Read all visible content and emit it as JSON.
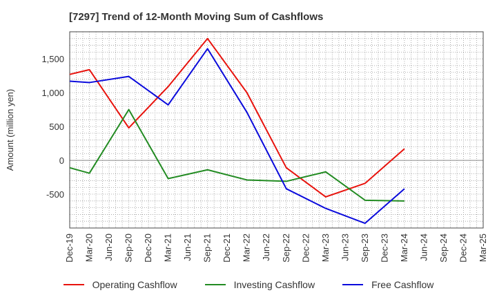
{
  "chart_data": {
    "type": "line",
    "title": "[7297]  Trend of 12-Month Moving Sum of Cashflows",
    "ylabel": "Amount (million yen)",
    "xlabel": "",
    "categories": [
      "Dec-19",
      "Mar-20",
      "Jun-20",
      "Sep-20",
      "Dec-20",
      "Mar-21",
      "Jun-21",
      "Sep-21",
      "Dec-21",
      "Mar-22",
      "Jun-22",
      "Sep-22",
      "Dec-22",
      "Mar-23",
      "Jun-23",
      "Sep-23",
      "Dec-23",
      "Mar-24",
      "Jun-24",
      "Sep-24",
      "Dec-24",
      "Mar-25"
    ],
    "ylim": [
      -1000,
      1900
    ],
    "yticks": [
      -500,
      0,
      500,
      1000,
      1500
    ],
    "ytick_labels": [
      "-500",
      "0",
      "500",
      "1,000",
      "1,500"
    ],
    "grid": true,
    "legend_position": "bottom",
    "series": [
      {
        "name": "Operating Cashflow",
        "color": "#e8120c",
        "points": [
          [
            "Dec-19",
            1270
          ],
          [
            "Mar-20",
            1340
          ],
          [
            "Sep-20",
            480
          ],
          [
            "Mar-21",
            1090
          ],
          [
            "Sep-21",
            1800
          ],
          [
            "Mar-22",
            1000
          ],
          [
            "Sep-22",
            -110
          ],
          [
            "Mar-23",
            -540
          ],
          [
            "Sep-23",
            -340
          ],
          [
            "Mar-24",
            170
          ]
        ]
      },
      {
        "name": "Investing Cashflow",
        "color": "#228b22",
        "points": [
          [
            "Dec-19",
            -110
          ],
          [
            "Mar-20",
            -190
          ],
          [
            "Sep-20",
            750
          ],
          [
            "Mar-21",
            -270
          ],
          [
            "Sep-21",
            -140
          ],
          [
            "Mar-22",
            -290
          ],
          [
            "Sep-22",
            -310
          ],
          [
            "Mar-23",
            -170
          ],
          [
            "Sep-23",
            -590
          ],
          [
            "Mar-24",
            -600
          ]
        ]
      },
      {
        "name": "Free Cashflow",
        "color": "#0a0adc",
        "points": [
          [
            "Dec-19",
            1170
          ],
          [
            "Mar-20",
            1150
          ],
          [
            "Sep-20",
            1240
          ],
          [
            "Mar-21",
            820
          ],
          [
            "Sep-21",
            1650
          ],
          [
            "Mar-22",
            710
          ],
          [
            "Sep-22",
            -420
          ],
          [
            "Mar-23",
            -710
          ],
          [
            "Sep-23",
            -930
          ],
          [
            "Mar-24",
            -420
          ]
        ]
      }
    ]
  }
}
